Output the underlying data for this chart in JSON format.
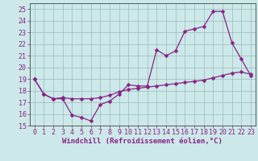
{
  "xlabel": "Windchill (Refroidissement éolien,°C)",
  "bg_color": "#cce8e8",
  "grid_color": "#99bbbb",
  "line_color": "#882288",
  "xlim": [
    -0.5,
    23.5
  ],
  "ylim": [
    15,
    25.5
  ],
  "yticks": [
    15,
    16,
    17,
    18,
    19,
    20,
    21,
    22,
    23,
    24,
    25
  ],
  "xticks": [
    0,
    1,
    2,
    3,
    4,
    5,
    6,
    7,
    8,
    9,
    10,
    11,
    12,
    13,
    14,
    15,
    16,
    17,
    18,
    19,
    20,
    21,
    22,
    23
  ],
  "series1_x": [
    0,
    1,
    2,
    3,
    4,
    5,
    6,
    7,
    8,
    9,
    10,
    11,
    12,
    13,
    14,
    15,
    16,
    17,
    18,
    19,
    20,
    21,
    22,
    23
  ],
  "series1_y": [
    19.0,
    17.7,
    17.3,
    17.3,
    15.9,
    15.7,
    15.4,
    16.8,
    17.1,
    17.7,
    18.5,
    18.4,
    18.4,
    21.5,
    21.0,
    21.4,
    23.1,
    23.3,
    23.5,
    24.8,
    24.8,
    22.1,
    20.7,
    19.3
  ],
  "series2_x": [
    0,
    1,
    2,
    3,
    4,
    5,
    6,
    7,
    8,
    9,
    10,
    11,
    12,
    13,
    14,
    15,
    16,
    17,
    18,
    19,
    20,
    21,
    22,
    23
  ],
  "series2_y": [
    19.0,
    17.7,
    17.3,
    17.4,
    17.3,
    17.3,
    17.3,
    17.4,
    17.6,
    17.9,
    18.1,
    18.2,
    18.3,
    18.4,
    18.5,
    18.6,
    18.7,
    18.8,
    18.9,
    19.1,
    19.3,
    19.5,
    19.6,
    19.4
  ],
  "markersize": 2.5,
  "linewidth": 0.9,
  "xlabel_fontsize": 6.5,
  "tick_fontsize": 6.0
}
